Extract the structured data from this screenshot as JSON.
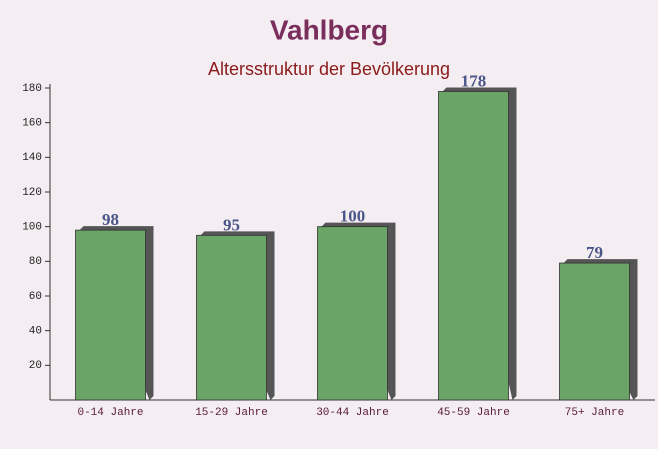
{
  "chart_data": {
    "type": "bar",
    "title": "Vahlberg",
    "subtitle": "Altersstruktur der Bevölkerung",
    "categories": [
      "0-14 Jahre",
      "15-29 Jahre",
      "30-44 Jahre",
      "45-59 Jahre",
      "75+ Jahre"
    ],
    "values": [
      98,
      95,
      100,
      178,
      79
    ],
    "color": "#6aa466",
    "ylim": [
      0,
      180
    ],
    "yticks": [
      20,
      40,
      60,
      80,
      100,
      120,
      140,
      160,
      180
    ]
  }
}
